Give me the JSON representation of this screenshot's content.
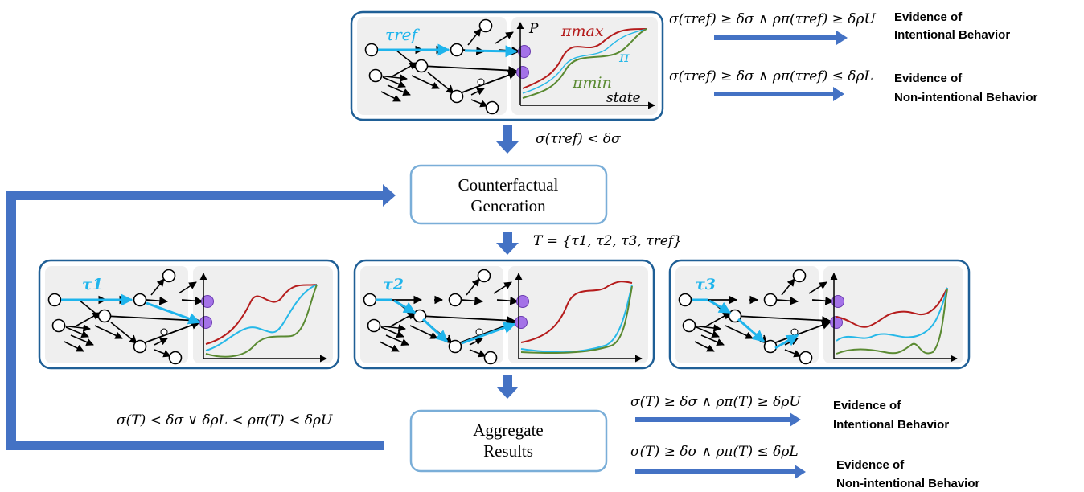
{
  "top_panel": {
    "trajectory_label": "τref",
    "chart": {
      "y_axis_label": "P",
      "x_axis_label": "state",
      "curve_labels": {
        "max": "πmax",
        "mean": "π",
        "min": "πmin"
      }
    },
    "condition_intentional": "σ(τref) ≥ δσ ∧ ρπ(τref) ≥ δρU",
    "condition_non_intentional": "σ(τref) ≥ δσ ∧ ρπ(τref) ≤ δρL",
    "evidence_intentional": [
      "Evidence of",
      "Intentional Behavior"
    ],
    "evidence_non_intentional": [
      "Evidence of",
      "Non-intentional Behavior"
    ]
  },
  "step_condition": "σ(τref) < δσ",
  "counterfactual_box": {
    "lines": [
      "Counterfactual",
      "Generation"
    ]
  },
  "set_label": "T = {τ1, τ2, τ3, τref}",
  "panels": [
    {
      "trajectory_label": "τ1"
    },
    {
      "trajectory_label": "τ2"
    },
    {
      "trajectory_label": "τ3"
    }
  ],
  "aggregate_box": {
    "lines": [
      "Aggregate",
      "Results"
    ]
  },
  "loop_condition": "σ(T) < δσ ∨ δρL < ρπ(T) < δρU",
  "bottom": {
    "condition_intentional": "σ(T) ≥ δσ ∧ ρπ(T) ≥ δρU",
    "condition_non_intentional": "σ(T) ≥ δσ ∧ ρπ(T) ≤ δρL",
    "evidence_intentional": [
      "Evidence of",
      "Intentional Behavior"
    ],
    "evidence_non_intentional": [
      "Evidence of",
      "Non-intentional Behavior"
    ]
  },
  "colors": {
    "panel_border": "#1f5f96",
    "panel_fill": "#efefef",
    "arrow": "#4472c4",
    "highlight": "#1eb4ec",
    "goal_node": "#a472e8",
    "pi_max": "#b51c1c",
    "pi": "#26b8e8",
    "pi_min": "#5a8a32",
    "box_border": "#7aaed8"
  }
}
